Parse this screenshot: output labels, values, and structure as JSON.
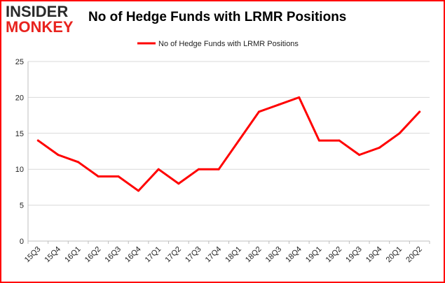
{
  "logo": {
    "line1": "INSIDER",
    "line2": "MONKEY"
  },
  "colors": {
    "line": "#ff0000",
    "grid": "#d9d9d9",
    "border": "#ff0000",
    "logo_red": "#e8231e"
  },
  "chart_data": {
    "type": "line",
    "title": "No of Hedge Funds with LRMR Positions",
    "xlabel": "",
    "ylabel": "",
    "ylim": [
      0,
      25
    ],
    "yticks": [
      0,
      5,
      10,
      15,
      20,
      25
    ],
    "grid": true,
    "legend_position": "top-center",
    "categories": [
      "15Q3",
      "15Q4",
      "16Q1",
      "16Q2",
      "16Q3",
      "16Q4",
      "17Q1",
      "17Q2",
      "17Q3",
      "17Q4",
      "18Q1",
      "18Q2",
      "18Q3",
      "18Q4",
      "19Q1",
      "19Q2",
      "19Q3",
      "19Q4",
      "20Q1",
      "20Q2"
    ],
    "series": [
      {
        "name": "No of Hedge Funds with LRMR Positions",
        "values": [
          14,
          12,
          11,
          9,
          9,
          7,
          10,
          8,
          10,
          10,
          14,
          18,
          19,
          20,
          14,
          14,
          12,
          13,
          15,
          18
        ]
      }
    ]
  }
}
